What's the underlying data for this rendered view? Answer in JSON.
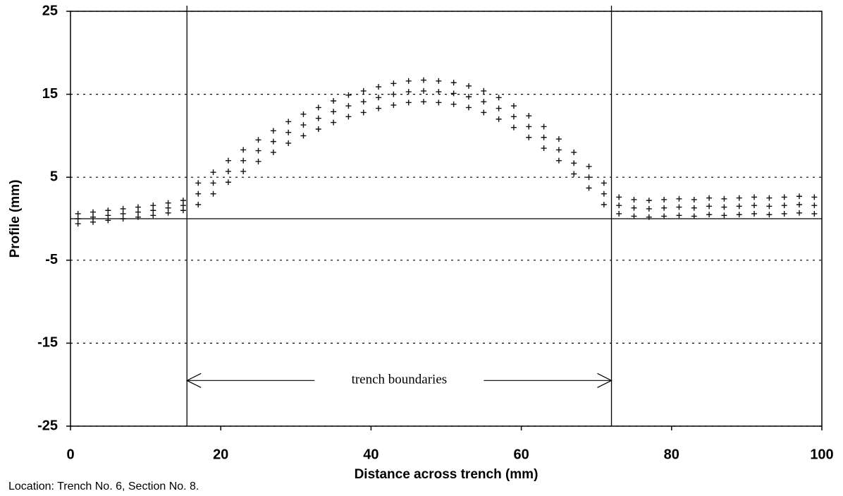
{
  "chart_data": {
    "type": "scatter",
    "xlabel": "Distance across trench (mm)",
    "ylabel": "Profile (mm)",
    "footnote": "Location: Trench No. 6, Section No. 8.",
    "xlim": [
      0,
      100
    ],
    "ylim": [
      -25,
      25
    ],
    "xticks": [
      0,
      20,
      40,
      60,
      80,
      100
    ],
    "yticks": [
      25,
      15,
      5,
      -5,
      -15,
      -25
    ],
    "grid": true,
    "color": "#111111",
    "hlines": [
      0
    ],
    "vlines": [
      15.5,
      72
    ],
    "annotations": [
      {
        "text": "trench boundaries",
        "x": [
          15.5,
          72
        ],
        "y": -19.5
      }
    ],
    "x": [
      1,
      1,
      1,
      3,
      3,
      3,
      5,
      5,
      5,
      7,
      7,
      7,
      9,
      9,
      9,
      11,
      11,
      11,
      13,
      13,
      13,
      15,
      15,
      15,
      17,
      17,
      17,
      19,
      19,
      19,
      21,
      21,
      21,
      23,
      23,
      23,
      25,
      25,
      25,
      27,
      27,
      27,
      29,
      29,
      29,
      31,
      31,
      31,
      33,
      33,
      33,
      35,
      35,
      35,
      37,
      37,
      37,
      39,
      39,
      39,
      41,
      41,
      41,
      43,
      43,
      43,
      45,
      45,
      45,
      47,
      47,
      47,
      49,
      49,
      49,
      51,
      51,
      51,
      53,
      53,
      53,
      55,
      55,
      55,
      57,
      57,
      57,
      59,
      59,
      59,
      61,
      61,
      61,
      63,
      63,
      63,
      65,
      65,
      65,
      67,
      67,
      67,
      69,
      69,
      69,
      71,
      71,
      71,
      73,
      73,
      73,
      75,
      75,
      75,
      77,
      77,
      77,
      79,
      79,
      79,
      81,
      81,
      81,
      83,
      83,
      83,
      85,
      85,
      85,
      87,
      87,
      87,
      89,
      89,
      89,
      91,
      91,
      91,
      93,
      93,
      93,
      95,
      95,
      95,
      97,
      97,
      97,
      99,
      99,
      99
    ],
    "y": [
      -0.6,
      0,
      0.6,
      -0.4,
      0.2,
      0.8,
      -0.2,
      0.4,
      1.0,
      0,
      0.6,
      1.2,
      0.2,
      0.8,
      1.4,
      0.4,
      1.0,
      1.6,
      0.7,
      1.3,
      1.9,
      1.0,
      1.6,
      2.2,
      1.7,
      3,
      4.3,
      3,
      4.3,
      5.6,
      4.4,
      5.7,
      7,
      5.7,
      7,
      8.3,
      6.9,
      8.2,
      9.5,
      8,
      9.3,
      10.6,
      9.1,
      10.4,
      11.7,
      10,
      11.3,
      12.6,
      10.8,
      12.1,
      13.4,
      11.6,
      12.9,
      14.2,
      12.3,
      13.6,
      14.9,
      12.8,
      14.1,
      15.4,
      13.3,
      14.6,
      15.9,
      13.7,
      15,
      16.3,
      14,
      15.3,
      16.6,
      14.1,
      15.4,
      16.7,
      14,
      15.3,
      16.6,
      13.8,
      15.1,
      16.4,
      13.4,
      14.7,
      16,
      12.8,
      14.1,
      15.4,
      12,
      13.3,
      14.6,
      11,
      12.3,
      13.6,
      9.8,
      11.1,
      12.4,
      8.5,
      9.8,
      11.1,
      7,
      8.3,
      9.6,
      5.4,
      6.7,
      8,
      3.7,
      5,
      6.3,
      1.7,
      3,
      4.3,
      0.6,
      1.6,
      2.6,
      0.3,
      1.3,
      2.3,
      0.2,
      1.2,
      2.2,
      0.3,
      1.3,
      2.3,
      0.4,
      1.4,
      2.4,
      0.3,
      1.3,
      2.3,
      0.5,
      1.5,
      2.5,
      0.4,
      1.4,
      2.4,
      0.5,
      1.5,
      2.5,
      0.6,
      1.6,
      2.6,
      0.5,
      1.5,
      2.5,
      0.6,
      1.6,
      2.6,
      0.7,
      1.7,
      2.7,
      0.6,
      1.6,
      2.6
    ]
  }
}
